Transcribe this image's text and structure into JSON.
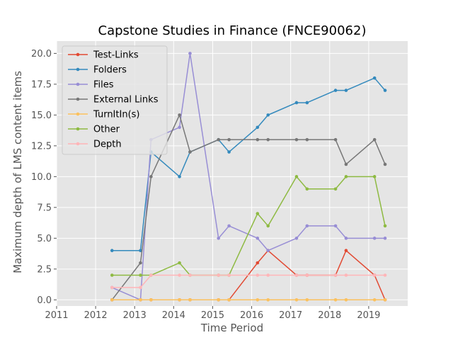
{
  "chart_data": {
    "type": "line",
    "title": "Capstone Studies in Finance (FNCE90062)",
    "xlabel": "Time Period",
    "ylabel": "Maximum depth of LMS content items",
    "xlim": [
      2011,
      2020
    ],
    "ylim": [
      -0.5,
      21
    ],
    "x_ticks": [
      2011,
      2012,
      2013,
      2014,
      2015,
      2016,
      2017,
      2018,
      2019
    ],
    "y_ticks": [
      0.0,
      2.5,
      5.0,
      7.5,
      10.0,
      12.5,
      15.0,
      17.5,
      20.0
    ],
    "x_tick_labels": [
      "2011",
      "2012",
      "2013",
      "2014",
      "2015",
      "2016",
      "2017",
      "2018",
      "2019"
    ],
    "y_tick_labels": [
      "0.0",
      "2.5",
      "5.0",
      "7.5",
      "10.0",
      "12.5",
      "15.0",
      "17.5",
      "20.0"
    ],
    "grid": true,
    "legend_position": "top-left",
    "x": [
      2012.42,
      2013.15,
      2013.42,
      2014.15,
      2014.42,
      2015.15,
      2015.42,
      2016.15,
      2016.42,
      2017.15,
      2017.42,
      2018.15,
      2018.42,
      2019.15,
      2019.42
    ],
    "series": [
      {
        "name": "Test-Links",
        "color": "#e24a33",
        "values": [
          0,
          0,
          0,
          0,
          0,
          0,
          0,
          3,
          4,
          2,
          2,
          2,
          4,
          2,
          0
        ]
      },
      {
        "name": "Folders",
        "color": "#348abd",
        "values": [
          4,
          4,
          12,
          10,
          12,
          13,
          12,
          14,
          15,
          16,
          16,
          17,
          17,
          18,
          17
        ]
      },
      {
        "name": "Files",
        "color": "#988ed5",
        "values": [
          1,
          0,
          13,
          14,
          20,
          5,
          6,
          5,
          4,
          5,
          6,
          6,
          5,
          5,
          5
        ]
      },
      {
        "name": "External Links",
        "color": "#777777",
        "values": [
          0,
          3,
          10,
          15,
          12,
          13,
          13,
          13,
          13,
          13,
          13,
          13,
          11,
          13,
          11
        ]
      },
      {
        "name": "TurnItIn(s)",
        "color": "#fbc15e",
        "values": [
          0,
          0,
          0,
          0,
          0,
          0,
          0,
          0,
          0,
          0,
          0,
          0,
          0,
          0,
          0
        ]
      },
      {
        "name": "Other",
        "color": "#8eba42",
        "values": [
          2,
          2,
          2,
          3,
          2,
          2,
          2,
          7,
          6,
          10,
          9,
          9,
          10,
          10,
          6
        ]
      },
      {
        "name": "Depth",
        "color": "#ffb5b8",
        "values": [
          1,
          1,
          2,
          2,
          2,
          2,
          2,
          2,
          2,
          2,
          2,
          2,
          2,
          2,
          2
        ]
      }
    ]
  }
}
